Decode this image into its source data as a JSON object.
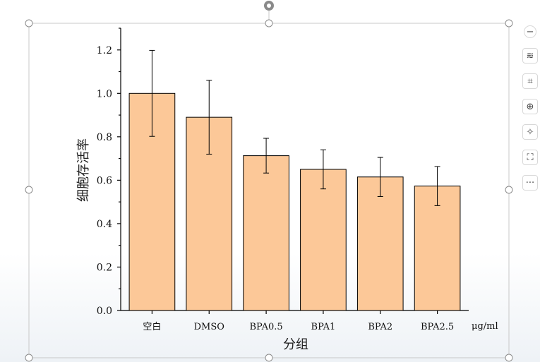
{
  "chart_data": {
    "type": "bar",
    "categories": [
      "空白",
      "DMSO",
      "BPA0.5",
      "BPA1",
      "BPA2",
      "BPA2.5"
    ],
    "values": [
      1.0,
      0.89,
      0.713,
      0.65,
      0.615,
      0.573
    ],
    "errors": [
      0.198,
      0.17,
      0.08,
      0.09,
      0.09,
      0.09
    ],
    "xlabel": "分组",
    "ylabel": "细胞存活率",
    "x_unit": "μg/ml",
    "ylim": [
      0,
      1.3
    ],
    "yticks": [
      0.0,
      0.2,
      0.4,
      0.6,
      0.8,
      1.0,
      1.2
    ],
    "bar_color": "#fcc898",
    "edge_color": "#000000",
    "grid": false
  },
  "toolbar": {
    "items": [
      {
        "name": "minus-icon",
        "glyph": "−"
      },
      {
        "name": "layers-icon",
        "glyph": "≋"
      },
      {
        "name": "crop-icon",
        "glyph": "⌗"
      },
      {
        "name": "zoom-in-icon",
        "glyph": "⊕"
      },
      {
        "name": "magic-wand-icon",
        "glyph": "✧"
      },
      {
        "name": "scan-icon",
        "glyph": "⛶"
      },
      {
        "name": "more-icon",
        "glyph": "···"
      }
    ]
  }
}
